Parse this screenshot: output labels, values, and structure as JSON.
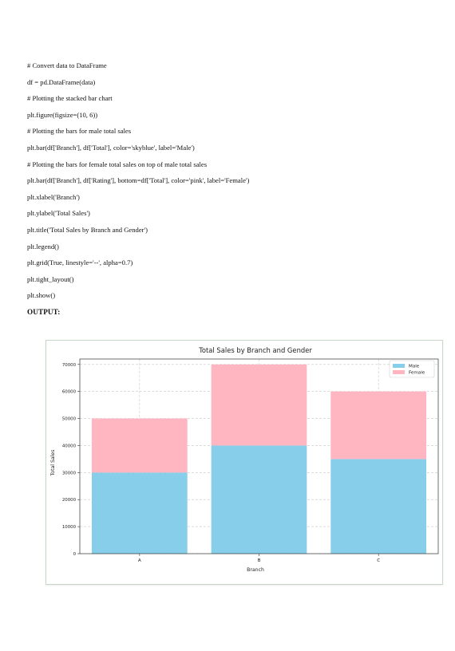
{
  "code": {
    "lines": [
      "# Convert data to DataFrame",
      "df = pd.DataFrame(data)",
      "# Plotting the stacked bar chart",
      "plt.figure(figsize=(10, 6))",
      "# Plotting the bars for male total sales",
      "plt.bar(df['Branch'], df['Total'], color='skyblue', label='Male')",
      "# Plotting the bars for female total sales on top of male total sales",
      "plt.bar(df['Branch'], df['Rating'], bottom=df['Total'], color='pink', label='Female')",
      "plt.xlabel('Branch')",
      "plt.ylabel('Total Sales')",
      "plt.title('Total Sales by Branch and Gender')",
      "plt.legend()",
      "plt.grid(True, linestyle='--', alpha=0.7)",
      "plt.tight_layout()",
      "plt.show()"
    ],
    "output_label": "OUTPUT:"
  },
  "chart_data": {
    "type": "bar",
    "stacked": true,
    "title": "Total Sales by Branch and Gender",
    "xlabel": "Branch",
    "ylabel": "Total Sales",
    "categories": [
      "A",
      "B",
      "C"
    ],
    "series": [
      {
        "name": "Male",
        "values": [
          30000,
          40000,
          35000
        ],
        "color": "#87ceeb"
      },
      {
        "name": "Female",
        "values": [
          20000,
          30000,
          25000
        ],
        "color": "#ffb6c1"
      }
    ],
    "ylim": [
      0,
      72000
    ],
    "yticks": [
      0,
      10000,
      20000,
      30000,
      40000,
      50000,
      60000,
      70000
    ],
    "ytick_labels": [
      "0",
      "10000",
      "20000",
      "30000",
      "40000",
      "50000",
      "60000",
      "70000"
    ],
    "grid": true,
    "legend_position": "top-right"
  }
}
